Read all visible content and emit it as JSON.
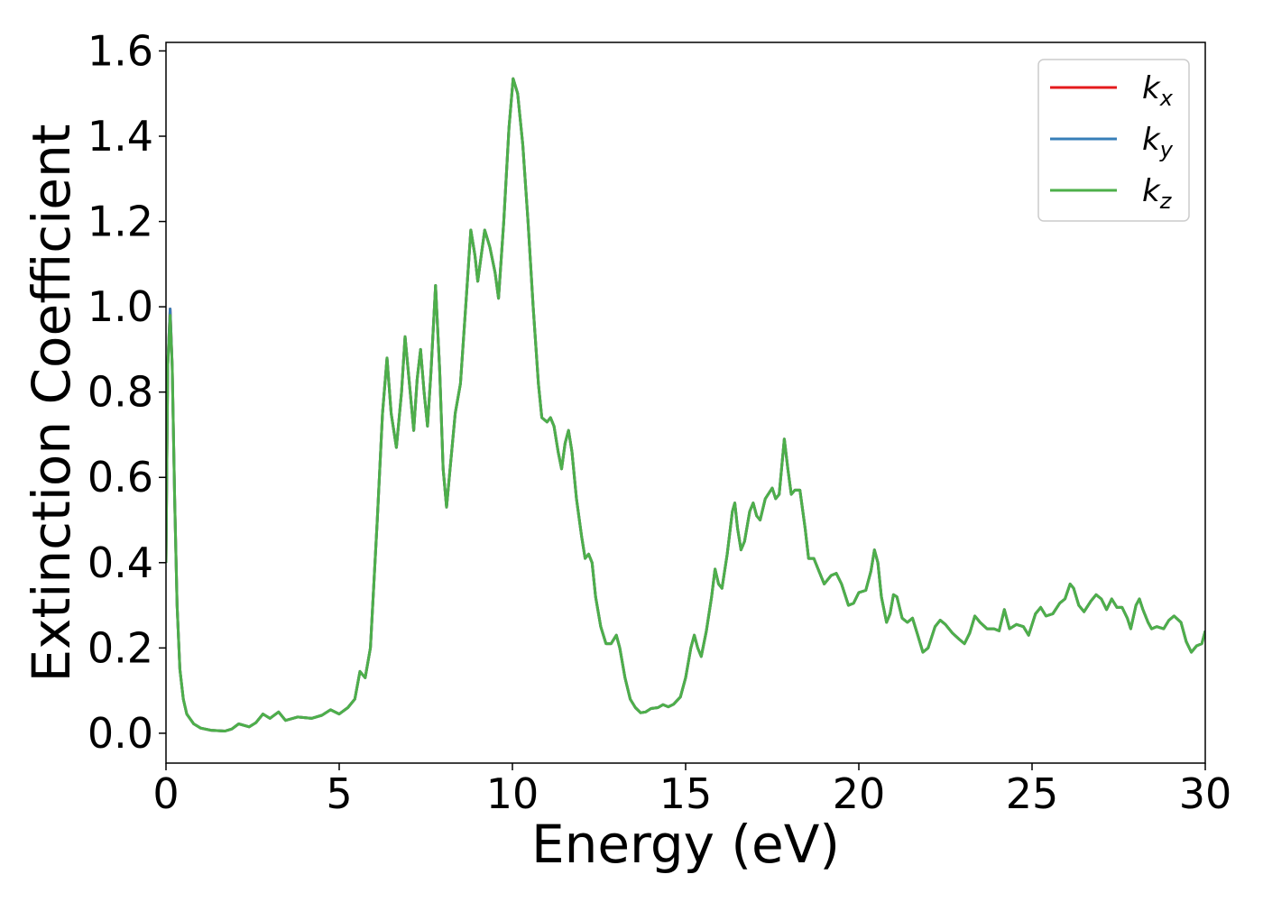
{
  "chart_data": {
    "type": "line",
    "xlabel": "Energy (eV)",
    "ylabel": "Extinction Coefficient",
    "xlim": [
      0,
      30
    ],
    "ylim": [
      -0.07,
      1.62
    ],
    "xticks": [
      0,
      5,
      10,
      15,
      20,
      25,
      30
    ],
    "xtick_labels": [
      "0",
      "5",
      "10",
      "15",
      "20",
      "25",
      "30"
    ],
    "yticks": [
      0.0,
      0.2,
      0.4,
      0.6,
      0.8,
      1.0,
      1.2,
      1.4,
      1.6
    ],
    "ytick_labels": [
      "0.0",
      "0.2",
      "0.4",
      "0.6",
      "0.8",
      "1.0",
      "1.2",
      "1.4",
      "1.6"
    ],
    "grid": false,
    "legend_position": "top-right",
    "series": [
      {
        "name": "k_x",
        "label_base": "k",
        "label_sub": "x",
        "color": "#e41a1c",
        "points": [
          [
            0.0,
            0.4
          ],
          [
            0.05,
            0.86
          ],
          [
            0.12,
            0.995
          ],
          [
            0.18,
            0.86
          ],
          [
            0.25,
            0.55
          ],
          [
            0.32,
            0.3
          ],
          [
            0.4,
            0.15
          ],
          [
            0.5,
            0.08
          ],
          [
            0.6,
            0.045
          ],
          [
            0.8,
            0.022
          ],
          [
            1.0,
            0.012
          ],
          [
            1.3,
            0.007
          ],
          [
            1.7,
            0.005
          ],
          [
            1.9,
            0.01
          ],
          [
            2.1,
            0.022
          ],
          [
            2.4,
            0.015
          ],
          [
            2.6,
            0.025
          ],
          [
            2.8,
            0.045
          ],
          [
            3.0,
            0.035
          ],
          [
            3.25,
            0.05
          ],
          [
            3.45,
            0.03
          ],
          [
            3.8,
            0.038
          ],
          [
            4.2,
            0.035
          ],
          [
            4.5,
            0.042
          ],
          [
            4.75,
            0.055
          ],
          [
            5.0,
            0.045
          ],
          [
            5.25,
            0.06
          ],
          [
            5.45,
            0.08
          ],
          [
            5.6,
            0.145
          ],
          [
            5.75,
            0.13
          ],
          [
            5.9,
            0.2
          ],
          [
            6.1,
            0.5
          ],
          [
            6.25,
            0.75
          ],
          [
            6.38,
            0.88
          ],
          [
            6.5,
            0.75
          ],
          [
            6.65,
            0.67
          ],
          [
            6.8,
            0.8
          ],
          [
            6.9,
            0.93
          ],
          [
            7.05,
            0.8
          ],
          [
            7.15,
            0.71
          ],
          [
            7.25,
            0.83
          ],
          [
            7.35,
            0.9
          ],
          [
            7.45,
            0.8
          ],
          [
            7.55,
            0.72
          ],
          [
            7.65,
            0.85
          ],
          [
            7.78,
            1.05
          ],
          [
            7.9,
            0.85
          ],
          [
            8.0,
            0.62
          ],
          [
            8.1,
            0.53
          ],
          [
            8.2,
            0.62
          ],
          [
            8.35,
            0.75
          ],
          [
            8.5,
            0.82
          ],
          [
            8.65,
            1.0
          ],
          [
            8.8,
            1.18
          ],
          [
            8.92,
            1.12
          ],
          [
            9.0,
            1.06
          ],
          [
            9.1,
            1.12
          ],
          [
            9.2,
            1.18
          ],
          [
            9.35,
            1.14
          ],
          [
            9.5,
            1.08
          ],
          [
            9.6,
            1.02
          ],
          [
            9.75,
            1.2
          ],
          [
            9.9,
            1.42
          ],
          [
            10.02,
            1.535
          ],
          [
            10.15,
            1.5
          ],
          [
            10.3,
            1.38
          ],
          [
            10.45,
            1.2
          ],
          [
            10.6,
            1.0
          ],
          [
            10.75,
            0.82
          ],
          [
            10.85,
            0.74
          ],
          [
            11.0,
            0.73
          ],
          [
            11.1,
            0.74
          ],
          [
            11.2,
            0.72
          ],
          [
            11.32,
            0.66
          ],
          [
            11.42,
            0.62
          ],
          [
            11.52,
            0.68
          ],
          [
            11.62,
            0.71
          ],
          [
            11.72,
            0.66
          ],
          [
            11.85,
            0.55
          ],
          [
            12.0,
            0.46
          ],
          [
            12.1,
            0.41
          ],
          [
            12.2,
            0.42
          ],
          [
            12.3,
            0.4
          ],
          [
            12.4,
            0.32
          ],
          [
            12.55,
            0.25
          ],
          [
            12.7,
            0.21
          ],
          [
            12.85,
            0.21
          ],
          [
            13.0,
            0.23
          ],
          [
            13.1,
            0.2
          ],
          [
            13.25,
            0.13
          ],
          [
            13.4,
            0.08
          ],
          [
            13.55,
            0.06
          ],
          [
            13.7,
            0.048
          ],
          [
            13.85,
            0.05
          ],
          [
            14.0,
            0.058
          ],
          [
            14.2,
            0.06
          ],
          [
            14.35,
            0.067
          ],
          [
            14.5,
            0.062
          ],
          [
            14.65,
            0.068
          ],
          [
            14.85,
            0.085
          ],
          [
            15.0,
            0.13
          ],
          [
            15.15,
            0.2
          ],
          [
            15.25,
            0.23
          ],
          [
            15.35,
            0.2
          ],
          [
            15.45,
            0.18
          ],
          [
            15.6,
            0.24
          ],
          [
            15.75,
            0.32
          ],
          [
            15.85,
            0.385
          ],
          [
            15.95,
            0.35
          ],
          [
            16.05,
            0.34
          ],
          [
            16.2,
            0.42
          ],
          [
            16.35,
            0.52
          ],
          [
            16.42,
            0.54
          ],
          [
            16.5,
            0.48
          ],
          [
            16.6,
            0.43
          ],
          [
            16.7,
            0.45
          ],
          [
            16.85,
            0.52
          ],
          [
            16.95,
            0.54
          ],
          [
            17.05,
            0.51
          ],
          [
            17.15,
            0.5
          ],
          [
            17.3,
            0.55
          ],
          [
            17.5,
            0.575
          ],
          [
            17.6,
            0.55
          ],
          [
            17.7,
            0.56
          ],
          [
            17.85,
            0.69
          ],
          [
            17.95,
            0.62
          ],
          [
            18.05,
            0.56
          ],
          [
            18.15,
            0.57
          ],
          [
            18.3,
            0.57
          ],
          [
            18.45,
            0.48
          ],
          [
            18.55,
            0.41
          ],
          [
            18.7,
            0.41
          ],
          [
            18.85,
            0.38
          ],
          [
            19.0,
            0.35
          ],
          [
            19.2,
            0.37
          ],
          [
            19.35,
            0.375
          ],
          [
            19.5,
            0.35
          ],
          [
            19.7,
            0.3
          ],
          [
            19.85,
            0.305
          ],
          [
            20.0,
            0.33
          ],
          [
            20.2,
            0.335
          ],
          [
            20.35,
            0.38
          ],
          [
            20.45,
            0.43
          ],
          [
            20.55,
            0.4
          ],
          [
            20.65,
            0.32
          ],
          [
            20.8,
            0.26
          ],
          [
            20.9,
            0.28
          ],
          [
            21.0,
            0.325
          ],
          [
            21.1,
            0.32
          ],
          [
            21.25,
            0.27
          ],
          [
            21.4,
            0.26
          ],
          [
            21.55,
            0.27
          ],
          [
            21.7,
            0.23
          ],
          [
            21.85,
            0.19
          ],
          [
            22.0,
            0.2
          ],
          [
            22.2,
            0.25
          ],
          [
            22.35,
            0.265
          ],
          [
            22.5,
            0.255
          ],
          [
            22.7,
            0.235
          ],
          [
            22.9,
            0.22
          ],
          [
            23.05,
            0.21
          ],
          [
            23.2,
            0.235
          ],
          [
            23.35,
            0.275
          ],
          [
            23.5,
            0.26
          ],
          [
            23.7,
            0.245
          ],
          [
            23.9,
            0.245
          ],
          [
            24.05,
            0.24
          ],
          [
            24.2,
            0.29
          ],
          [
            24.35,
            0.245
          ],
          [
            24.55,
            0.255
          ],
          [
            24.75,
            0.25
          ],
          [
            24.9,
            0.23
          ],
          [
            25.1,
            0.28
          ],
          [
            25.25,
            0.295
          ],
          [
            25.4,
            0.275
          ],
          [
            25.6,
            0.28
          ],
          [
            25.8,
            0.305
          ],
          [
            25.95,
            0.315
          ],
          [
            26.1,
            0.35
          ],
          [
            26.2,
            0.34
          ],
          [
            26.35,
            0.3
          ],
          [
            26.5,
            0.285
          ],
          [
            26.7,
            0.31
          ],
          [
            26.85,
            0.325
          ],
          [
            27.0,
            0.315
          ],
          [
            27.15,
            0.29
          ],
          [
            27.3,
            0.315
          ],
          [
            27.45,
            0.295
          ],
          [
            27.6,
            0.295
          ],
          [
            27.75,
            0.27
          ],
          [
            27.85,
            0.245
          ],
          [
            28.0,
            0.3
          ],
          [
            28.1,
            0.315
          ],
          [
            28.2,
            0.29
          ],
          [
            28.35,
            0.26
          ],
          [
            28.45,
            0.245
          ],
          [
            28.6,
            0.25
          ],
          [
            28.8,
            0.245
          ],
          [
            28.95,
            0.265
          ],
          [
            29.1,
            0.275
          ],
          [
            29.3,
            0.26
          ],
          [
            29.45,
            0.215
          ],
          [
            29.6,
            0.19
          ],
          [
            29.75,
            0.205
          ],
          [
            29.9,
            0.21
          ],
          [
            30.0,
            0.24
          ]
        ]
      },
      {
        "name": "k_y",
        "label_base": "k",
        "label_sub": "y",
        "color": "#377eb8",
        "same_as": "k_x"
      },
      {
        "name": "k_z",
        "label_base": "k",
        "label_sub": "z",
        "color": "#4daf4a",
        "same_as": "k_x",
        "peak_at_0_12": 0.98
      }
    ]
  }
}
